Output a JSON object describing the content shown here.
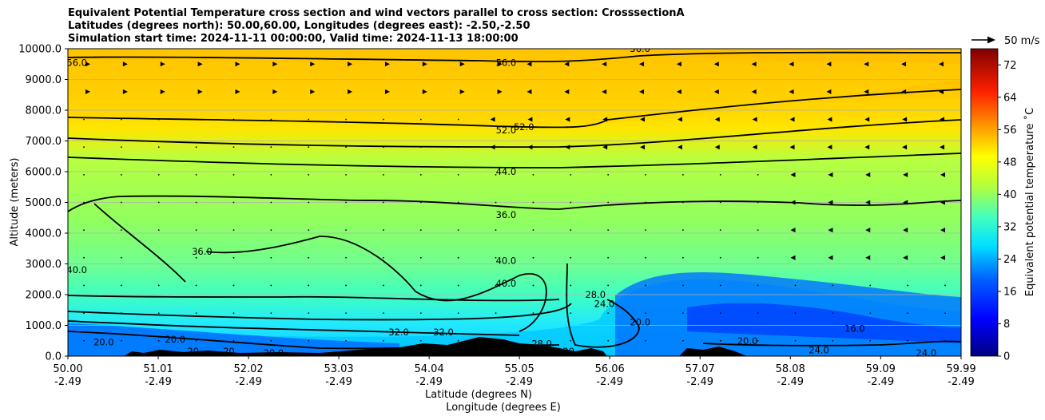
{
  "chart_data": {
    "type": "heatmap",
    "title": {
      "line1": "Equivalent Potential Temperature cross section and wind vectors parallel to cross section: CrosssectionA",
      "line2": "Latitudes (degrees north): 50.00,60.00, Longitudes (degrees east): -2.50,-2.50",
      "line3": "Simulation start time: 2024-11-11 00:00:00, Valid time: 2024-11-13 18:00:00"
    },
    "ylabel": "Altitude (meters)",
    "xlabel_lat": "Latitude (degrees N)",
    "xlabel_lon": "Longitude (degrees E)",
    "ylim": [
      0,
      10000
    ],
    "y_ticks": [
      0,
      1000,
      2000,
      3000,
      4000,
      5000,
      6000,
      7000,
      8000,
      9000,
      10000
    ],
    "y_tick_labels": [
      "0.0",
      "1000.0",
      "2000.0",
      "3000.0",
      "4000.0",
      "5000.0",
      "6000.0",
      "7000.0",
      "8000.0",
      "9000.0",
      "10000.0"
    ],
    "x_ticks": [
      {
        "lat": "50.00",
        "lon": "-2.49"
      },
      {
        "lat": "51.01",
        "lon": "-2.49"
      },
      {
        "lat": "52.02",
        "lon": "-2.49"
      },
      {
        "lat": "53.03",
        "lon": "-2.49"
      },
      {
        "lat": "54.04",
        "lon": "-2.49"
      },
      {
        "lat": "55.05",
        "lon": "-2.49"
      },
      {
        "lat": "56.06",
        "lon": "-2.49"
      },
      {
        "lat": "57.07",
        "lon": "-2.49"
      },
      {
        "lat": "58.08",
        "lon": "-2.49"
      },
      {
        "lat": "59.09",
        "lon": "-2.49"
      },
      {
        "lat": "59.99",
        "lon": "-2.49"
      }
    ],
    "colorbar": {
      "label": "Equivalent potential temperature ˚C",
      "range": [
        0,
        76
      ],
      "ticks": [
        "0",
        "8",
        "16",
        "24",
        "32",
        "40",
        "48",
        "56",
        "64",
        "72"
      ]
    },
    "quiver_key": "50 m/s",
    "contour_labels": [
      {
        "text": "56.0",
        "x": 54.9,
        "y": 9550
      },
      {
        "text": "52.0",
        "x": 54.9,
        "y": 7350
      },
      {
        "text": "52.0",
        "x": 55.1,
        "y": 7450
      },
      {
        "text": "44.0",
        "x": 54.9,
        "y": 6000
      },
      {
        "text": "36.0",
        "x": 54.9,
        "y": 4600
      },
      {
        "text": "40.0",
        "x": 54.9,
        "y": 3100
      },
      {
        "text": "40.0",
        "x": 54.9,
        "y": 2370
      },
      {
        "text": "36.0",
        "x": 51.5,
        "y": 3400
      },
      {
        "text": "40.0",
        "x": 50.1,
        "y": 2800
      },
      {
        "text": "56.0",
        "x": 50.1,
        "y": 9550
      },
      {
        "text": "32.0",
        "x": 53.7,
        "y": 780
      },
      {
        "text": "32.0",
        "x": 54.2,
        "y": 780
      },
      {
        "text": "28.0",
        "x": 55.9,
        "y": 2000
      },
      {
        "text": "24.0",
        "x": 56.0,
        "y": 1700
      },
      {
        "text": "20.0",
        "x": 56.4,
        "y": 1100
      },
      {
        "text": "16.0",
        "x": 58.8,
        "y": 900
      },
      {
        "text": "20.0",
        "x": 57.6,
        "y": 500
      },
      {
        "text": "24.0",
        "x": 58.4,
        "y": 200
      },
      {
        "text": "24.0",
        "x": 59.6,
        "y": 100
      },
      {
        "text": "20.0",
        "x": 50.4,
        "y": 450
      },
      {
        "text": "20.0",
        "x": 51.2,
        "y": 550
      },
      {
        "text": "20",
        "x": 51.4,
        "y": 150
      },
      {
        "text": "20",
        "x": 51.8,
        "y": 150
      },
      {
        "text": "20.0",
        "x": 52.3,
        "y": 100
      },
      {
        "text": "24",
        "x": 53.7,
        "y": 150
      },
      {
        "text": "24",
        "x": 54.0,
        "y": 200
      },
      {
        "text": "28.0",
        "x": 55.3,
        "y": 400
      },
      {
        "text": "20",
        "x": 55.6,
        "y": 150
      },
      {
        "text": "56.0",
        "x": 56.4,
        "y": 10000
      }
    ]
  }
}
